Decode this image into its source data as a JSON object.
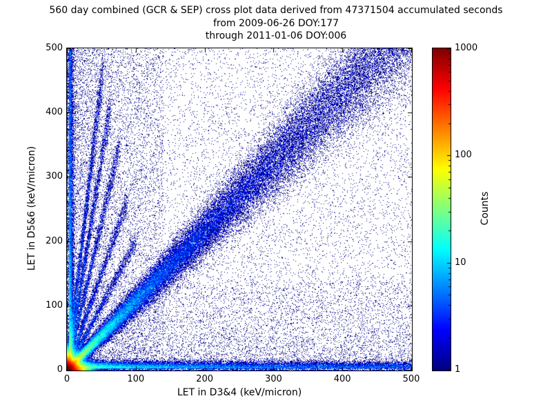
{
  "title": {
    "line1": "560 day combined (GCR & SEP) cross plot data derived from 47371504 accumulated seconds",
    "line2": "from 2009-06-26 DOY:177",
    "line3": "through 2011-01-06 DOY:006"
  },
  "chart_data": {
    "type": "heatmap",
    "title": "560 day combined (GCR & SEP) cross plot data derived from 47371504 accumulated seconds",
    "subtitle_from": "from 2009-06-26 DOY:177",
    "subtitle_through": "through 2011-01-06 DOY:006",
    "accumulated_seconds": 47371504,
    "duration_days": 560,
    "xlabel": "LET in D3&4 (keV/micron)",
    "ylabel": "LET in D5&6 (keV/micron)",
    "xlim": [
      0,
      500
    ],
    "ylim": [
      0,
      500
    ],
    "xticks": [
      0,
      100,
      200,
      300,
      400,
      500
    ],
    "yticks": [
      0,
      100,
      200,
      300,
      400,
      500
    ],
    "grid": false,
    "colorbar": {
      "label": "Counts",
      "scale": "log",
      "min": 1,
      "max": 1000,
      "ticks": [
        1,
        10,
        100,
        1000
      ],
      "colormap": "jet"
    },
    "notes": "2D histogram cross plot of coincident LET in detector pairs D3&4 vs D5&6. Intense red/yellow hot spot at the origin (counts near 1000), a dense diagonal band near y=x fading with LET, a low-LET horizontal band along y~5 extending to x~500, a narrow vertical band along x~5, several steep ray-like streaks fanning from the origin, and sparse single-count (dark blue) background points across the plane.",
    "render_features": [
      {
        "kind": "core",
        "n": 130000,
        "scale": 6.5
      },
      {
        "kind": "diagonal",
        "n": 80000,
        "xmax": 500,
        "power": 2.6,
        "slope": 1.08,
        "spread0": 2.5,
        "spreadGrowth": 0.085
      },
      {
        "kind": "hband",
        "n": 32000,
        "xmax": 500,
        "power": 2.6,
        "y0": 3,
        "spread": 5
      },
      {
        "kind": "vband",
        "n": 20000,
        "ymax": 500,
        "power": 2.6,
        "x0": 3,
        "spread": 3
      },
      {
        "kind": "ray",
        "n": 5200,
        "slope": 9.0,
        "xmax": 52,
        "power": 2,
        "spread": 1.6
      },
      {
        "kind": "ray",
        "n": 4600,
        "slope": 6.5,
        "xmax": 64,
        "power": 2,
        "spread": 1.6
      },
      {
        "kind": "ray",
        "n": 4200,
        "slope": 4.6,
        "xmax": 76,
        "power": 2,
        "spread": 1.6
      },
      {
        "kind": "ray",
        "n": 3600,
        "slope": 3.0,
        "xmax": 88,
        "power": 2,
        "spread": 1.6
      },
      {
        "kind": "ray",
        "n": 3200,
        "slope": 2.0,
        "xmax": 100,
        "power": 2,
        "spread": 1.8
      },
      {
        "kind": "uniform",
        "n": 11000
      },
      {
        "kind": "box",
        "n": 9000,
        "x0": 0,
        "x1": 140,
        "y0": 0,
        "y1": 500,
        "powx": 2.2,
        "powy": 1
      },
      {
        "kind": "box",
        "n": 7000,
        "x0": 0,
        "x1": 500,
        "y0": 0,
        "y1": 140,
        "powx": 1,
        "powy": 2.2
      }
    ]
  }
}
